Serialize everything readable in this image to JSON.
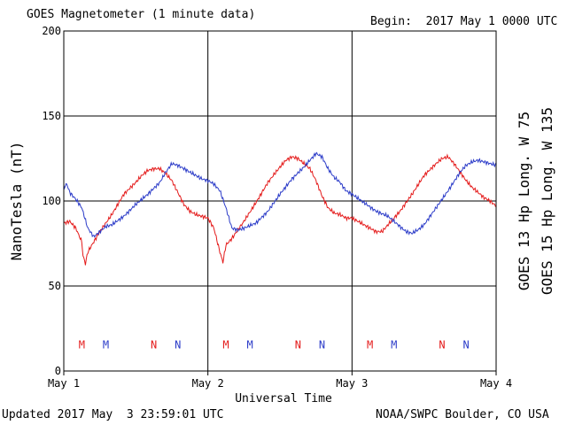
{
  "header": {
    "title": "GOES Magnetometer (1 minute data)",
    "begin": "Begin:  2017 May 1 0000 UTC"
  },
  "footer": {
    "updated": "Updated 2017 May  3 23:59:01 UTC",
    "credit": "NOAA/SWPC Boulder, CO USA"
  },
  "colors": {
    "goes13": "#e41a1a",
    "goes15": "#2b3bc8"
  },
  "chart_data": {
    "type": "line",
    "xlabel": "Universal Time",
    "ylabel": "NanoTesla (nT)",
    "xlim": [
      0,
      72
    ],
    "ylim": [
      0,
      200
    ],
    "yticks": [
      0,
      50,
      100,
      150,
      200
    ],
    "xticks": [
      {
        "hour": 0,
        "label": "May 1"
      },
      {
        "hour": 24,
        "label": "May 2"
      },
      {
        "hour": 48,
        "label": "May 3"
      },
      {
        "hour": 72,
        "label": "May 4"
      }
    ],
    "grid": true,
    "series": [
      {
        "name": "GOES 13 Hp  Long. W 75",
        "color": "#e41a1a",
        "x": [
          0,
          1,
          2,
          3,
          3.2,
          3.6,
          4,
          5,
          6,
          8,
          10,
          12,
          13,
          14,
          15,
          16,
          17,
          18,
          19,
          20,
          21,
          22,
          23,
          24,
          25,
          26,
          26.5,
          27,
          28,
          30,
          32,
          34,
          36,
          37,
          38,
          39,
          40,
          41,
          42,
          43,
          44,
          45,
          46,
          47,
          48,
          50,
          52,
          53,
          54,
          56,
          58,
          60,
          62,
          63,
          64,
          65,
          66,
          67,
          68,
          69,
          70,
          71,
          72
        ],
        "y": [
          87,
          88,
          84,
          76,
          68,
          63,
          70,
          76,
          82,
          92,
          104,
          111,
          115,
          118,
          119,
          119,
          116,
          112,
          105,
          98,
          94,
          92,
          91,
          90,
          84,
          70,
          64,
          74,
          78,
          88,
          99,
          111,
          120,
          124,
          126,
          125,
          122,
          119,
          112,
          103,
          96,
          93,
          92,
          90,
          90,
          86,
          82,
          82,
          86,
          94,
          104,
          115,
          122,
          125,
          126,
          122,
          117,
          112,
          108,
          105,
          102,
          100,
          97
        ]
      },
      {
        "name": "GOES 15 Hp  Long. W 135",
        "color": "#2b3bc8",
        "x": [
          0,
          0.5,
          1,
          2,
          3,
          4,
          5,
          6,
          7,
          8,
          10,
          12,
          14,
          16,
          17,
          18,
          19,
          20,
          21,
          22,
          23,
          24,
          25,
          26,
          27,
          28,
          29,
          30,
          32,
          34,
          36,
          38,
          40,
          41,
          42,
          43,
          44,
          45,
          46,
          47,
          48,
          50,
          52,
          54,
          56,
          57,
          58,
          59,
          60,
          62,
          64,
          66,
          67,
          68,
          69,
          70,
          71,
          72
        ],
        "y": [
          108,
          110,
          105,
          101,
          96,
          84,
          79,
          82,
          85,
          86,
          91,
          98,
          104,
          111,
          117,
          122,
          121,
          119,
          117,
          115,
          113,
          112,
          110,
          106,
          96,
          84,
          83,
          84,
          87,
          94,
          104,
          113,
          120,
          124,
          128,
          126,
          119,
          114,
          111,
          106,
          104,
          99,
          94,
          91,
          85,
          82,
          81,
          83,
          86,
          96,
          106,
          117,
          121,
          123,
          124,
          123,
          122,
          121
        ]
      }
    ],
    "markers": [
      {
        "label": "M",
        "series": 0,
        "hour": 3
      },
      {
        "label": "M",
        "series": 1,
        "hour": 7
      },
      {
        "label": "N",
        "series": 0,
        "hour": 15
      },
      {
        "label": "N",
        "series": 1,
        "hour": 19
      },
      {
        "label": "M",
        "series": 0,
        "hour": 27
      },
      {
        "label": "M",
        "series": 1,
        "hour": 31
      },
      {
        "label": "N",
        "series": 0,
        "hour": 39
      },
      {
        "label": "N",
        "series": 1,
        "hour": 43
      },
      {
        "label": "M",
        "series": 0,
        "hour": 51
      },
      {
        "label": "M",
        "series": 1,
        "hour": 55
      },
      {
        "label": "N",
        "series": 0,
        "hour": 63
      },
      {
        "label": "N",
        "series": 1,
        "hour": 67
      }
    ],
    "marker_level": 16
  }
}
